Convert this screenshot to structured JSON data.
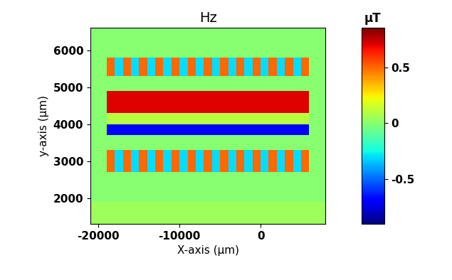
{
  "chart_data": {
    "type": "heatmap",
    "title": "Hz",
    "x_label": "X-axis (μm)",
    "y_label": "y-axis (μm)",
    "xlim": [
      -21000,
      8000
    ],
    "ylim": [
      1300,
      6600
    ],
    "xticks": [
      -20000,
      -10000,
      0
    ],
    "yticks": [
      2000,
      3000,
      4000,
      5000,
      6000
    ],
    "x_edges": [
      -21000,
      -20000,
      -19000,
      -18000,
      -17000,
      -16000,
      -15000,
      -14000,
      -13000,
      -12000,
      -11000,
      -10000,
      -9000,
      -8000,
      -7000,
      -6000,
      -5000,
      -4000,
      -3000,
      -2000,
      -1000,
      0,
      1000,
      2000,
      3000,
      4000,
      5000,
      6000,
      7000,
      8000
    ],
    "y_edges": [
      1300,
      1900,
      2700,
      3300,
      3700,
      4000,
      4300,
      4900,
      5300,
      5800,
      6600
    ],
    "cells": [
      [
        0.05,
        0.05,
        0.05,
        0.05,
        0.05,
        0.05,
        0.05,
        0.05,
        0.05,
        0.05,
        0.05,
        0.05,
        0.05,
        0.05,
        0.05,
        0.05,
        0.05,
        0.05,
        0.05,
        0.05,
        0.05,
        0.05,
        0.05,
        0.05,
        0.05,
        0.05,
        0.05,
        0.05,
        0.05
      ],
      [
        0,
        0,
        0,
        0,
        0,
        0,
        0,
        0,
        0,
        0,
        0,
        0,
        0,
        0,
        0,
        0,
        0,
        0,
        0,
        0,
        0,
        0,
        0,
        0,
        0,
        0,
        0,
        0,
        0
      ],
      [
        0,
        0,
        0.5,
        -0.3,
        0.5,
        -0.3,
        0.5,
        -0.3,
        0.5,
        -0.3,
        0.5,
        -0.3,
        0.5,
        -0.3,
        0.5,
        -0.3,
        0.5,
        -0.3,
        0.5,
        -0.3,
        0.5,
        -0.3,
        0.5,
        -0.3,
        0.5,
        -0.3,
        0.5,
        0,
        0
      ],
      [
        0,
        0,
        0,
        0,
        0,
        0,
        0,
        0,
        0,
        0,
        0,
        0,
        0,
        0,
        0,
        0,
        0,
        0,
        0,
        0,
        0,
        0,
        0,
        0,
        0,
        0,
        0,
        0,
        0
      ],
      [
        0,
        0,
        -0.7,
        -0.7,
        -0.7,
        -0.7,
        -0.7,
        -0.7,
        -0.7,
        -0.7,
        -0.7,
        -0.7,
        -0.7,
        -0.7,
        -0.7,
        -0.7,
        -0.7,
        -0.7,
        -0.7,
        -0.7,
        -0.7,
        -0.7,
        -0.7,
        -0.7,
        -0.7,
        -0.7,
        -0.7,
        0,
        0
      ],
      [
        0,
        0,
        0.1,
        0.1,
        0.1,
        0.1,
        0.1,
        0.1,
        0.1,
        0.1,
        0.1,
        0.1,
        0.1,
        0.1,
        0.1,
        0.1,
        0.1,
        0.1,
        0.1,
        0.1,
        0.1,
        0.1,
        0.1,
        0.1,
        0.1,
        0.1,
        0.1,
        0,
        0
      ],
      [
        0,
        0,
        0.7,
        0.7,
        0.7,
        0.7,
        0.7,
        0.7,
        0.7,
        0.7,
        0.7,
        0.7,
        0.7,
        0.7,
        0.7,
        0.7,
        0.7,
        0.7,
        0.7,
        0.7,
        0.7,
        0.7,
        0.7,
        0.7,
        0.7,
        0.7,
        0.7,
        0,
        0
      ],
      [
        0,
        0,
        0,
        0,
        0,
        0,
        0,
        0,
        0,
        0,
        0,
        0,
        0,
        0,
        0,
        0,
        0,
        0,
        0,
        0,
        0,
        0,
        0,
        0,
        0,
        0,
        0,
        0,
        0
      ],
      [
        0,
        0,
        0.5,
        -0.3,
        0.5,
        -0.3,
        0.5,
        -0.3,
        0.5,
        -0.3,
        0.5,
        -0.3,
        0.5,
        -0.3,
        0.5,
        -0.3,
        0.5,
        -0.3,
        0.5,
        -0.3,
        0.5,
        -0.3,
        0.5,
        -0.3,
        0.5,
        -0.3,
        0.5,
        0,
        0
      ],
      [
        0,
        0,
        0,
        0,
        0,
        0,
        0,
        0,
        0,
        0,
        0,
        0,
        0,
        0,
        0,
        0,
        0,
        0,
        0,
        0,
        0,
        0,
        0,
        0,
        0,
        0,
        0,
        0,
        0
      ]
    ],
    "colorbar": {
      "label": "μT",
      "range": [
        -0.9,
        0.85
      ],
      "ticks": [
        -0.5,
        0,
        0.5
      ]
    }
  }
}
